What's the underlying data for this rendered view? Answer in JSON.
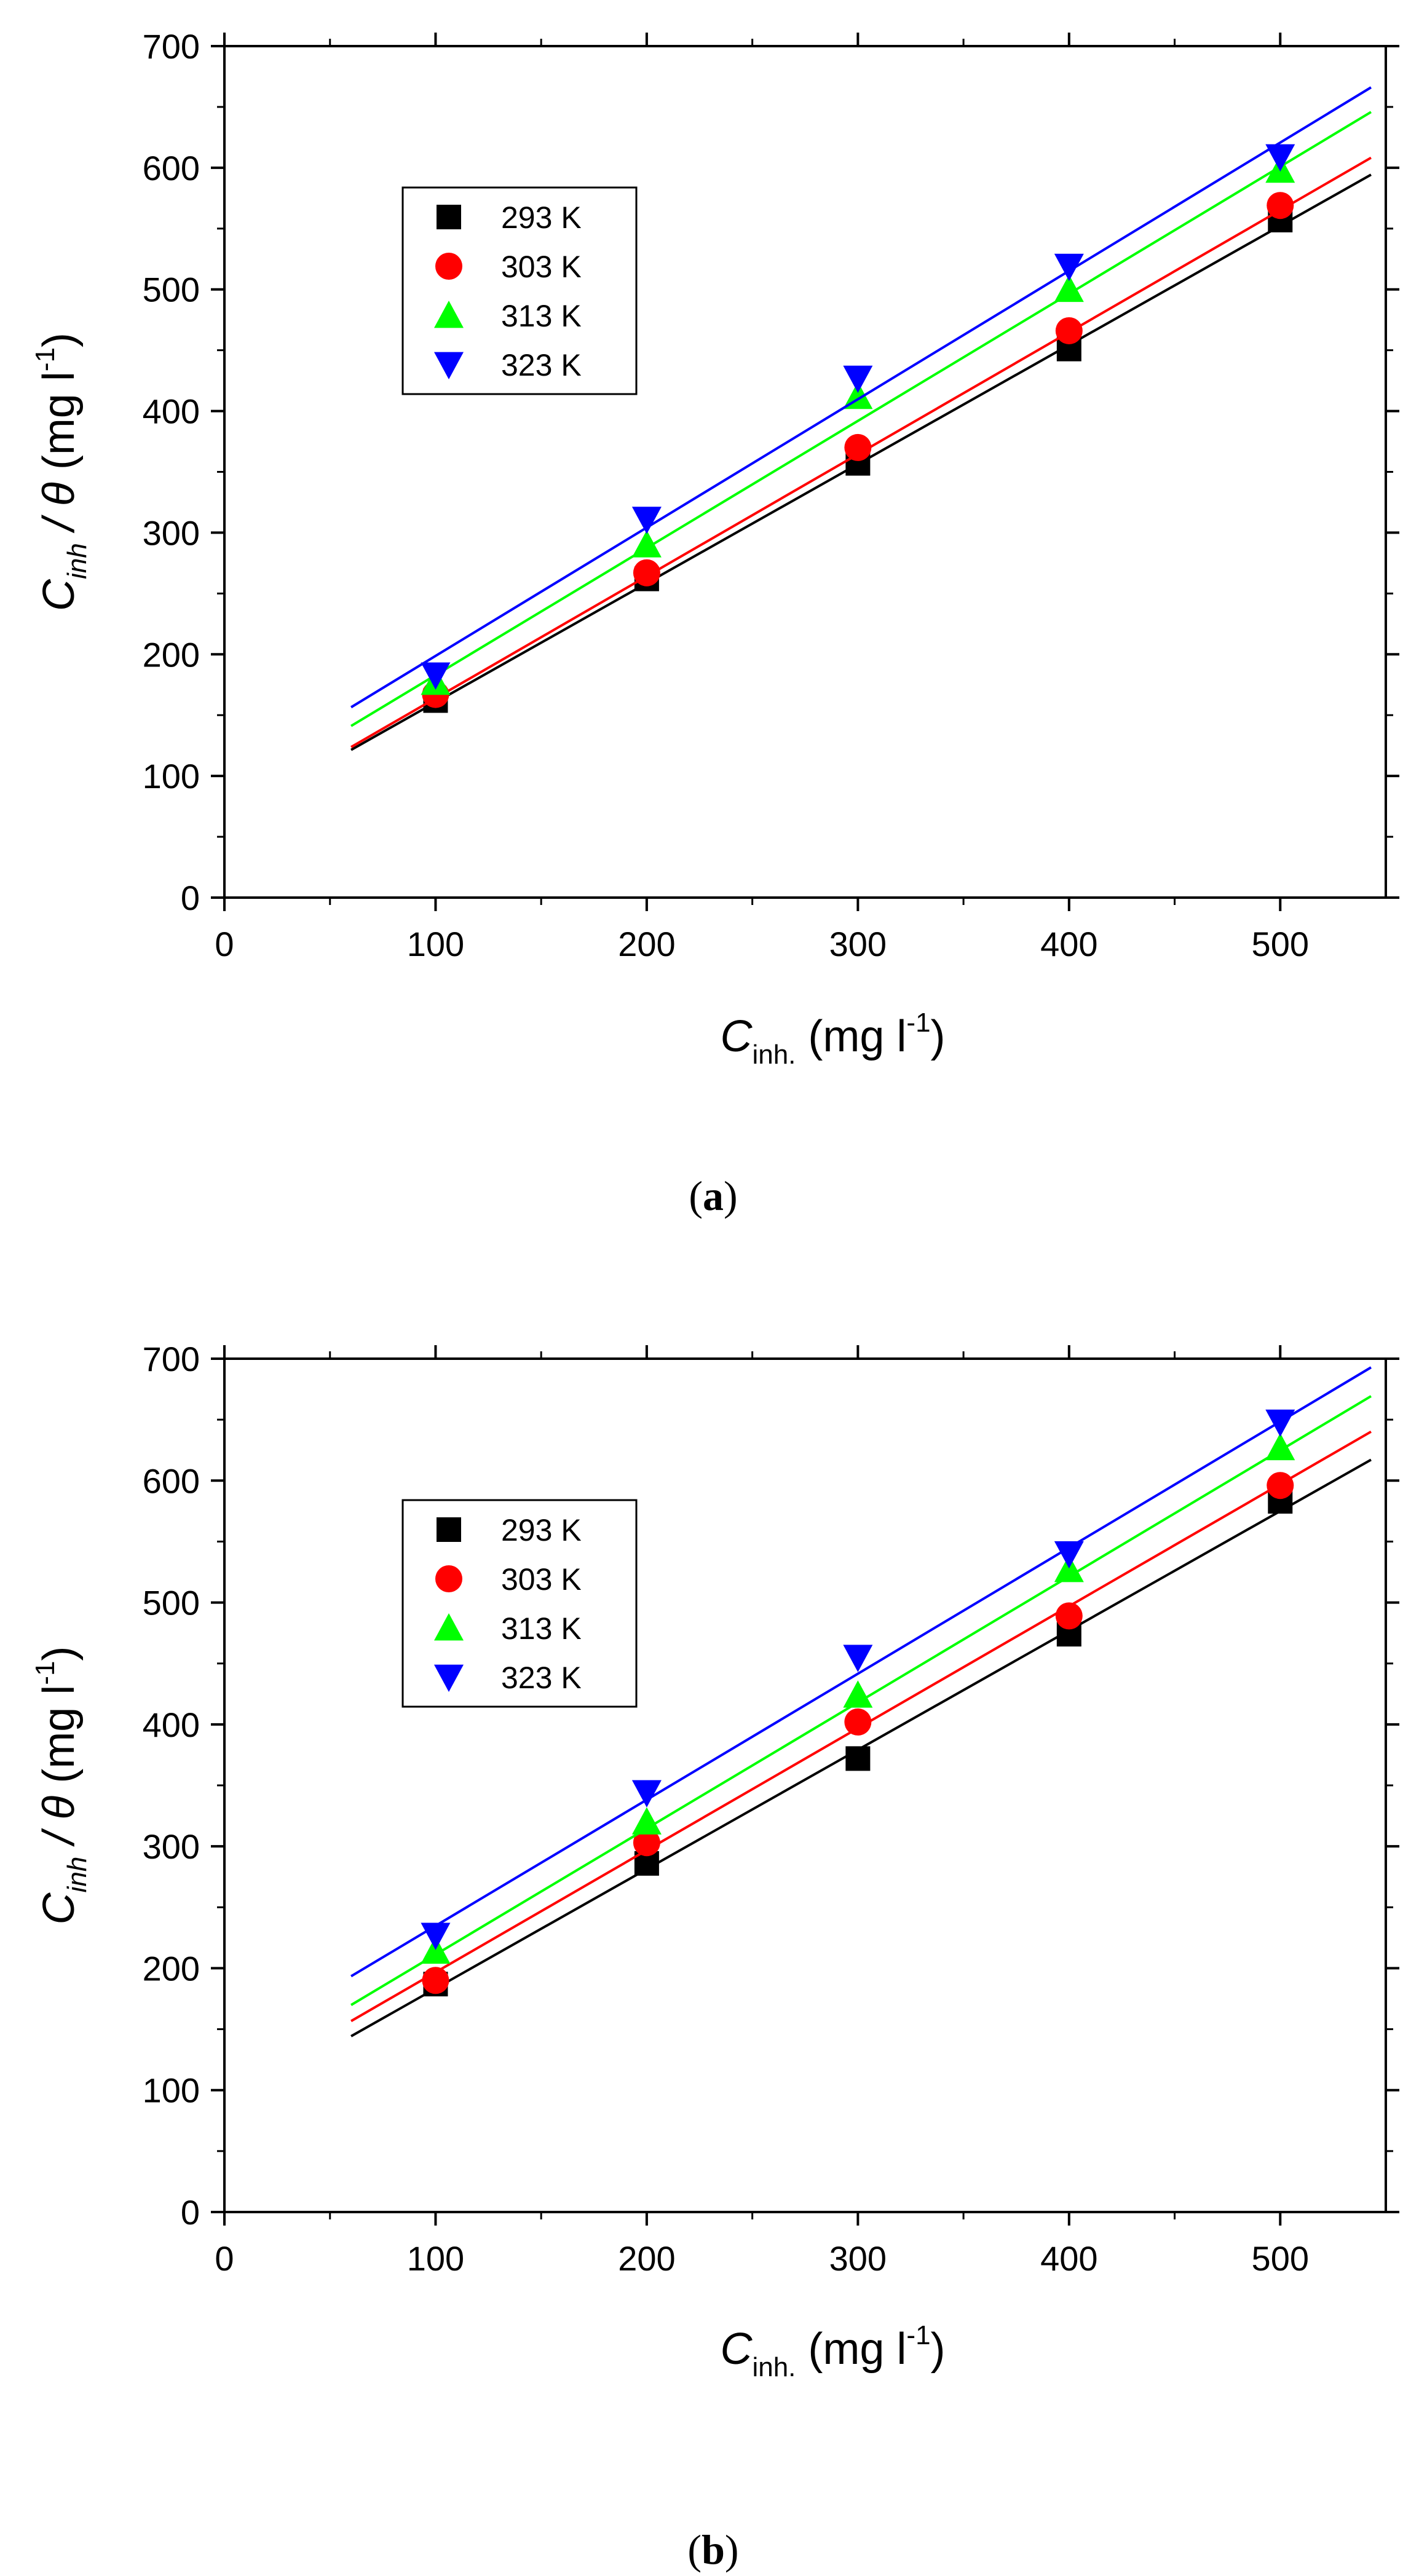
{
  "chart_data": [
    {
      "type": "scatter",
      "panel_label": "a",
      "xlim": [
        0,
        550
      ],
      "ylim": [
        0,
        700
      ],
      "xticks": [
        0,
        100,
        200,
        300,
        400,
        500
      ],
      "yticks": [
        0,
        100,
        200,
        300,
        400,
        500,
        600,
        700
      ],
      "xlabel": {
        "main": "C",
        "sub": "inh.",
        "unit_pre": " (mg l",
        "sup": "-1",
        "unit_post": ")"
      },
      "ylabel": {
        "main": "C",
        "sub": "inh",
        "mid": " / θ",
        "unit_pre": " (mg l",
        "sup": "-1",
        "unit_post": ")"
      },
      "legend_position": "upper-left",
      "fit_x_range": [
        60,
        543
      ],
      "series": [
        {
          "name": "293 K",
          "color": "#000000",
          "marker": "square",
          "x": [
            100,
            200,
            300,
            400,
            500
          ],
          "y": [
            162,
            262,
            357,
            451,
            557
          ],
          "fit": {
            "slope": 0.979,
            "intercept": 62.7
          }
        },
        {
          "name": "303 K",
          "color": "#ff0000",
          "marker": "circle",
          "x": [
            100,
            200,
            300,
            400,
            500
          ],
          "y": [
            167,
            267,
            370,
            466,
            569
          ],
          "fit": {
            "slope": 1.003,
            "intercept": 63.6
          }
        },
        {
          "name": "313 K",
          "color": "#00ff00",
          "marker": "triangle-up",
          "x": [
            100,
            200,
            300,
            400,
            500
          ],
          "y": [
            177,
            290,
            412,
            500,
            598
          ],
          "fit": {
            "slope": 1.045,
            "intercept": 78.4
          }
        },
        {
          "name": "323 K",
          "color": "#0000ff",
          "marker": "triangle-down",
          "x": [
            100,
            200,
            300,
            400,
            500
          ],
          "y": [
            183,
            311,
            427,
            519,
            609
          ],
          "fit": {
            "slope": 1.055,
            "intercept": 93.2
          }
        }
      ]
    },
    {
      "type": "scatter",
      "panel_label": "b",
      "xlim": [
        0,
        550
      ],
      "ylim": [
        0,
        700
      ],
      "xticks": [
        0,
        100,
        200,
        300,
        400,
        500
      ],
      "yticks": [
        0,
        100,
        200,
        300,
        400,
        500,
        600,
        700
      ],
      "xlabel": {
        "main": "C",
        "sub": "inh.",
        "unit_pre": " (mg l",
        "sup": "-1",
        "unit_post": ")"
      },
      "ylabel": {
        "main": "C",
        "sub": "inh",
        "mid": " / θ",
        "unit_pre": " (mg l",
        "sup": "-1",
        "unit_post": ")"
      },
      "legend_position": "upper-left",
      "fit_x_range": [
        60,
        543
      ],
      "series": [
        {
          "name": "293 K",
          "color": "#000000",
          "marker": "square",
          "x": [
            100,
            200,
            300,
            400,
            500
          ],
          "y": [
            187,
            286,
            372,
            474,
            583
          ],
          "fit": {
            "slope": 0.979,
            "intercept": 85.5
          }
        },
        {
          "name": "303 K",
          "color": "#ff0000",
          "marker": "circle",
          "x": [
            100,
            200,
            300,
            400,
            500
          ],
          "y": [
            190,
            303,
            402,
            489,
            596
          ],
          "fit": {
            "slope": 1.001,
            "intercept": 96.6
          }
        },
        {
          "name": "313 K",
          "color": "#00ff00",
          "marker": "triangle-up",
          "x": [
            100,
            200,
            300,
            400,
            500
          ],
          "y": [
            214,
            320,
            424,
            527,
            627
          ],
          "fit": {
            "slope": 1.034,
            "intercept": 107.8
          }
        },
        {
          "name": "323 K",
          "color": "#0000ff",
          "marker": "triangle-down",
          "x": [
            100,
            200,
            300,
            400,
            500
          ],
          "y": [
            227,
            344,
            455,
            540,
            648
          ],
          "fit": {
            "slope": 1.034,
            "intercept": 131.4
          }
        }
      ]
    }
  ]
}
